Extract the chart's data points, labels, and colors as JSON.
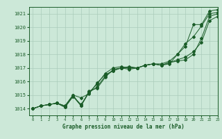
{
  "xlabel_label": "Graphe pression niveau de la mer (hPa)",
  "xlim": [
    -0.5,
    23
  ],
  "ylim": [
    1013.5,
    1021.5
  ],
  "yticks": [
    1014,
    1015,
    1016,
    1017,
    1018,
    1019,
    1020,
    1021
  ],
  "xticks": [
    0,
    1,
    2,
    3,
    4,
    5,
    6,
    7,
    8,
    9,
    10,
    11,
    12,
    13,
    14,
    15,
    16,
    17,
    18,
    19,
    20,
    21,
    22,
    23
  ],
  "bg_color": "#cce8d8",
  "grid_color": "#aaccbb",
  "line_color": "#1a5c28",
  "series": [
    [
      1014.0,
      1014.2,
      1014.3,
      1014.4,
      1014.2,
      1015.0,
      1014.2,
      1015.2,
      1015.8,
      1016.6,
      1017.0,
      1017.1,
      1017.0,
      1017.0,
      1017.2,
      1017.3,
      1017.2,
      1017.3,
      1018.0,
      1018.6,
      1020.2,
      1020.2,
      1021.2,
      1021.3
    ],
    [
      1014.0,
      1014.2,
      1014.3,
      1014.4,
      1014.2,
      1015.0,
      1014.8,
      1015.1,
      1015.9,
      1016.5,
      1016.8,
      1017.0,
      1017.1,
      1017.0,
      1017.2,
      1017.3,
      1017.3,
      1017.5,
      1018.0,
      1018.8,
      1019.3,
      1020.1,
      1021.0,
      1021.1
    ],
    [
      1014.0,
      1014.2,
      1014.3,
      1014.4,
      1014.1,
      1014.9,
      1014.2,
      1015.3,
      1015.5,
      1016.3,
      1016.9,
      1017.0,
      1016.9,
      1017.0,
      1017.2,
      1017.3,
      1017.2,
      1017.4,
      1017.5,
      1017.6,
      1018.0,
      1019.2,
      1020.8,
      1021.0
    ],
    [
      1014.0,
      1014.2,
      1014.3,
      1014.4,
      1014.1,
      1014.9,
      1014.3,
      1015.2,
      1015.6,
      1016.4,
      1016.8,
      1017.0,
      1017.0,
      1017.0,
      1017.2,
      1017.3,
      1017.2,
      1017.4,
      1017.6,
      1017.8,
      1018.2,
      1018.9,
      1020.5,
      1020.8
    ]
  ]
}
